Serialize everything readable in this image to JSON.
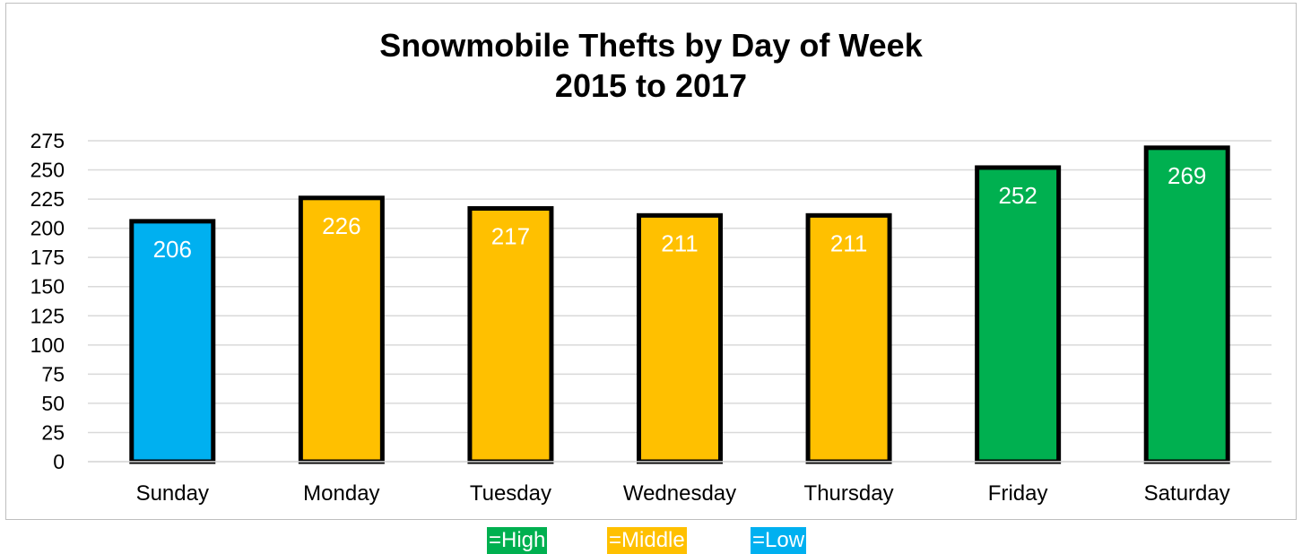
{
  "chart_data": {
    "type": "bar",
    "title": [
      "Snowmobile Thefts by Day of Week",
      "2015 to 2017"
    ],
    "xlabel": "",
    "ylabel": "",
    "categories": [
      "Sunday",
      "Monday",
      "Tuesday",
      "Wednesday",
      "Thursday",
      "Friday",
      "Saturday"
    ],
    "values": [
      206,
      226,
      217,
      211,
      211,
      252,
      269
    ],
    "data_labels": [
      "206",
      "226",
      "217",
      "211",
      "211",
      "252",
      "269"
    ],
    "levels": [
      "low",
      "middle",
      "middle",
      "middle",
      "middle",
      "high",
      "high"
    ],
    "yticks": [
      "0",
      "25",
      "50",
      "75",
      "100",
      "125",
      "150",
      "175",
      "200",
      "225",
      "250",
      "275"
    ],
    "ylim": [
      0,
      275
    ],
    "grid": true,
    "colors": {
      "high": "#00b050",
      "middle": "#ffc000",
      "low": "#00b0f0",
      "grid": "#d9d9d9",
      "outline": "#000000"
    }
  },
  "legend": [
    {
      "label": "=High",
      "level": "high"
    },
    {
      "label": "=Middle",
      "level": "middle"
    },
    {
      "label": "=Low",
      "level": "low"
    }
  ]
}
